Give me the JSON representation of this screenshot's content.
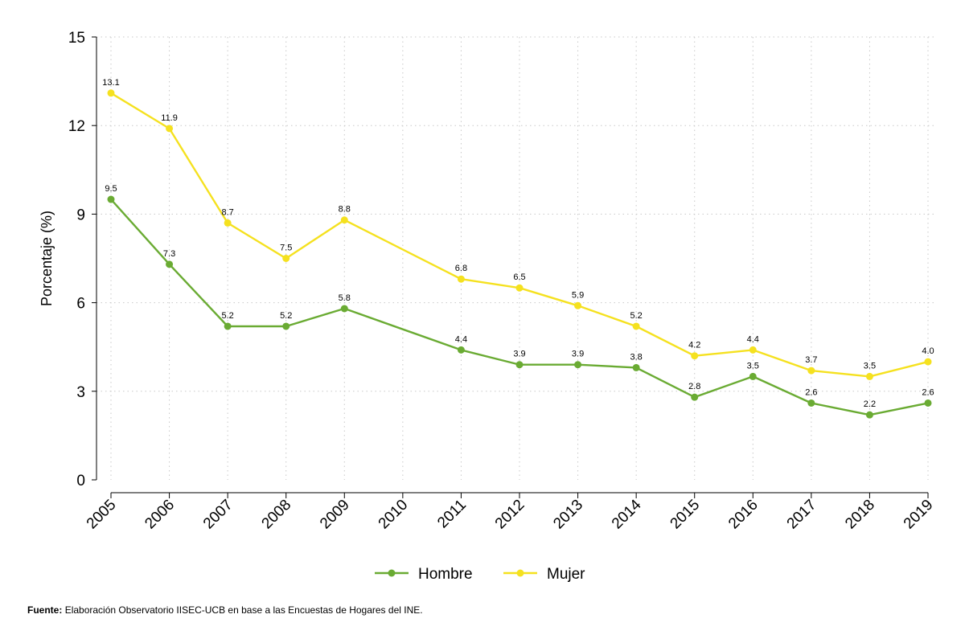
{
  "chart_data": {
    "type": "line",
    "title": "",
    "xlabel": "",
    "ylabel": "Porcentaje (%)",
    "ylim": [
      0,
      15
    ],
    "yticks": [
      0,
      3,
      6,
      9,
      12,
      15
    ],
    "grid": true,
    "legend_position": "bottom-center",
    "x": [
      "2005",
      "2006",
      "2007",
      "2008",
      "2009",
      "2010",
      "2011",
      "2012",
      "2013",
      "2014",
      "2015",
      "2016",
      "2017",
      "2018",
      "2019"
    ],
    "series": [
      {
        "name": "Hombre",
        "color": "#6aab33",
        "points": [
          {
            "x": "2005",
            "y": 9.5,
            "label": "9.5"
          },
          {
            "x": "2006",
            "y": 7.3,
            "label": "7.3"
          },
          {
            "x": "2007",
            "y": 5.2,
            "label": "5.2"
          },
          {
            "x": "2008",
            "y": 5.2,
            "label": "5.2"
          },
          {
            "x": "2009",
            "y": 5.8,
            "label": "5.8"
          },
          {
            "x": "2011",
            "y": 4.4,
            "label": "4.4"
          },
          {
            "x": "2012",
            "y": 3.9,
            "label": "3.9"
          },
          {
            "x": "2013",
            "y": 3.9,
            "label": "3.9"
          },
          {
            "x": "2014",
            "y": 3.8,
            "label": "3.8"
          },
          {
            "x": "2015",
            "y": 2.8,
            "label": "2.8"
          },
          {
            "x": "2016",
            "y": 3.5,
            "label": "3.5"
          },
          {
            "x": "2017",
            "y": 2.6,
            "label": "2.6"
          },
          {
            "x": "2018",
            "y": 2.2,
            "label": "2.2"
          },
          {
            "x": "2019",
            "y": 2.6,
            "label": "2.6"
          }
        ]
      },
      {
        "name": "Mujer",
        "color": "#f5e11f",
        "points": [
          {
            "x": "2005",
            "y": 13.1,
            "label": "13.1"
          },
          {
            "x": "2006",
            "y": 11.9,
            "label": "11.9"
          },
          {
            "x": "2007",
            "y": 8.7,
            "label": "8.7"
          },
          {
            "x": "2008",
            "y": 7.5,
            "label": "7.5"
          },
          {
            "x": "2009",
            "y": 8.8,
            "label": "8.8"
          },
          {
            "x": "2011",
            "y": 6.8,
            "label": "6.8"
          },
          {
            "x": "2012",
            "y": 6.5,
            "label": "6.5"
          },
          {
            "x": "2013",
            "y": 5.9,
            "label": "5.9"
          },
          {
            "x": "2014",
            "y": 5.2,
            "label": "5.2"
          },
          {
            "x": "2015",
            "y": 4.2,
            "label": "4.2"
          },
          {
            "x": "2016",
            "y": 4.4,
            "label": "4.4"
          },
          {
            "x": "2017",
            "y": 3.7,
            "label": "3.7"
          },
          {
            "x": "2018",
            "y": 3.5,
            "label": "3.5"
          },
          {
            "x": "2019",
            "y": 4.0,
            "label": "4.0"
          }
        ]
      }
    ]
  },
  "footer": {
    "source_label": "Fuente:",
    "source_text": "Elaboración Observatorio IISEC-UCB en base a las Encuestas de Hogares del INE."
  }
}
